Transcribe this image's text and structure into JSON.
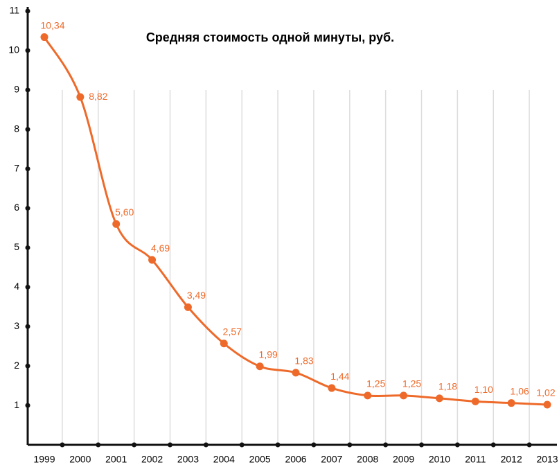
{
  "chart_data": {
    "type": "line",
    "title": "Средняя стоимость одной минуты, руб.",
    "categories": [
      "1999",
      "2000",
      "2001",
      "2002",
      "2003",
      "2004",
      "2005",
      "2006",
      "2007",
      "2008",
      "2009",
      "2010",
      "2011",
      "2012",
      "2013"
    ],
    "values": [
      10.34,
      8.82,
      5.6,
      4.69,
      3.49,
      2.57,
      1.99,
      1.83,
      1.44,
      1.25,
      1.25,
      1.18,
      1.1,
      1.06,
      1.02
    ],
    "value_labels": [
      "10,34",
      "8,82",
      "5,60",
      "4,69",
      "3,49",
      "2,57",
      "1,99",
      "1,83",
      "1,44",
      "1,25",
      "1,25",
      "1,18",
      "1,10",
      "1,06",
      "1,02"
    ],
    "color": "#ee6a2a",
    "ylim": [
      0,
      11
    ],
    "yticks": [
      1,
      2,
      3,
      4,
      5,
      6,
      7,
      8,
      9,
      10,
      11
    ],
    "grid": true
  }
}
